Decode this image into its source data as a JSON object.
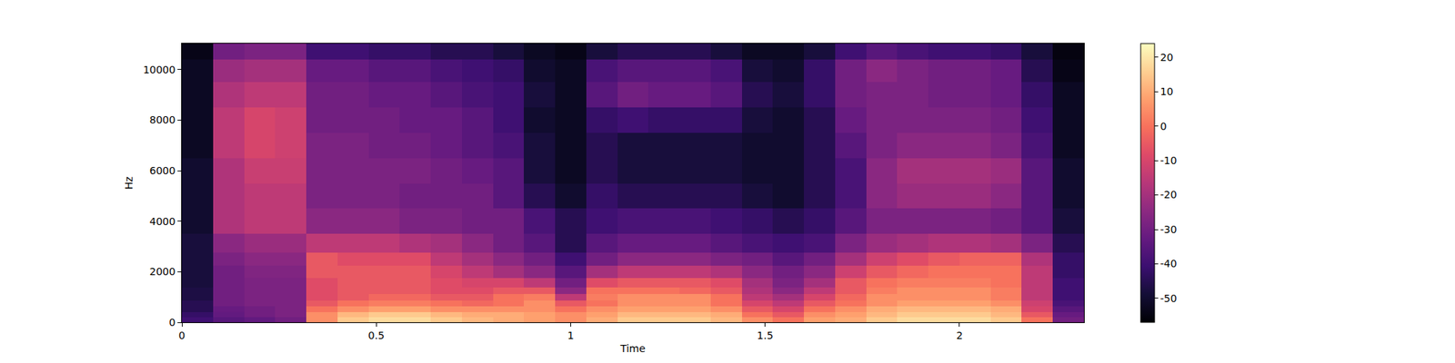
{
  "chart_data": {
    "type": "heatmap",
    "x_label": "Time",
    "y_label": "Hz",
    "color": "magma",
    "x": [
      0.04,
      0.12,
      0.2,
      0.28,
      0.36,
      0.44,
      0.52,
      0.6,
      0.68,
      0.76,
      0.84,
      0.92,
      1.0,
      1.08,
      1.16,
      1.24,
      1.32,
      1.4,
      1.48,
      1.56,
      1.64,
      1.72,
      1.8,
      1.88,
      1.96,
      2.04,
      2.12,
      2.2,
      2.28
    ],
    "y": [
      100,
      300,
      500,
      750,
      1000,
      1250,
      1500,
      2000,
      2500,
      3000,
      4000,
      5000,
      6000,
      7000,
      8000,
      9000,
      10000,
      10800
    ],
    "z": [
      [
        -40,
        -35,
        -33,
        -30,
        5,
        15,
        18,
        18,
        15,
        12,
        10,
        8,
        5,
        10,
        15,
        15,
        15,
        12,
        5,
        0,
        8,
        10,
        15,
        18,
        18,
        18,
        15,
        0,
        -30
      ],
      [
        -42,
        -33,
        -30,
        -28,
        5,
        12,
        15,
        15,
        12,
        10,
        10,
        8,
        5,
        8,
        12,
        12,
        12,
        10,
        0,
        -5,
        5,
        8,
        12,
        15,
        15,
        15,
        12,
        -5,
        -32
      ],
      [
        -45,
        -32,
        -30,
        -28,
        0,
        5,
        8,
        8,
        5,
        5,
        5,
        5,
        0,
        5,
        8,
        8,
        8,
        5,
        -5,
        -10,
        0,
        5,
        10,
        12,
        12,
        12,
        10,
        -10,
        -35
      ],
      [
        -45,
        -30,
        -28,
        -28,
        -5,
        0,
        2,
        2,
        0,
        -2,
        0,
        5,
        -5,
        0,
        5,
        5,
        5,
        0,
        -10,
        -15,
        -5,
        0,
        5,
        8,
        8,
        8,
        5,
        -12,
        -38
      ],
      [
        -47,
        -30,
        -28,
        -28,
        -8,
        -5,
        -2,
        -2,
        -5,
        -5,
        0,
        2,
        -15,
        2,
        5,
        5,
        5,
        0,
        -15,
        -20,
        -10,
        -2,
        5,
        5,
        5,
        5,
        2,
        -15,
        -40
      ],
      [
        -47,
        -30,
        -28,
        -28,
        -8,
        -5,
        -5,
        -5,
        -8,
        -8,
        -5,
        -5,
        -25,
        0,
        0,
        0,
        -2,
        -5,
        -18,
        -25,
        -15,
        -5,
        2,
        5,
        5,
        5,
        2,
        -15,
        -40
      ],
      [
        -48,
        -30,
        -28,
        -28,
        -8,
        -5,
        -5,
        -5,
        -8,
        -10,
        -10,
        -15,
        -30,
        -8,
        -5,
        -5,
        -5,
        -8,
        -20,
        -28,
        -20,
        -5,
        0,
        2,
        2,
        2,
        0,
        -15,
        -40
      ],
      [
        -48,
        -30,
        -27,
        -27,
        -5,
        -5,
        -5,
        -5,
        -10,
        -15,
        -20,
        -25,
        -35,
        -20,
        -15,
        -15,
        -15,
        -18,
        -25,
        -30,
        -25,
        -12,
        -5,
        -2,
        0,
        0,
        0,
        -15,
        -42
      ],
      [
        -48,
        -28,
        -25,
        -25,
        -5,
        -8,
        -8,
        -8,
        -15,
        -20,
        -25,
        -30,
        -40,
        -30,
        -25,
        -25,
        -25,
        -28,
        -30,
        -35,
        -30,
        -20,
        -12,
        -8,
        -5,
        -3,
        -3,
        -18,
        -42
      ],
      [
        -48,
        -25,
        -22,
        -22,
        -15,
        -15,
        -15,
        -18,
        -20,
        -25,
        -30,
        -35,
        -45,
        -35,
        -32,
        -32,
        -32,
        -35,
        -38,
        -40,
        -38,
        -28,
        -22,
        -20,
        -18,
        -18,
        -20,
        -28,
        -45
      ],
      [
        -50,
        -18,
        -15,
        -15,
        -25,
        -25,
        -25,
        -28,
        -28,
        -30,
        -30,
        -38,
        -45,
        -40,
        -38,
        -38,
        -38,
        -40,
        -42,
        -45,
        -42,
        -35,
        -28,
        -28,
        -28,
        -28,
        -30,
        -35,
        -48
      ],
      [
        -50,
        -18,
        -15,
        -15,
        -28,
        -28,
        -28,
        -30,
        -30,
        -30,
        -35,
        -45,
        -50,
        -42,
        -45,
        -45,
        -45,
        -45,
        -48,
        -50,
        -45,
        -38,
        -25,
        -22,
        -22,
        -22,
        -25,
        -35,
        -50
      ],
      [
        -50,
        -18,
        -13,
        -13,
        -28,
        -28,
        -28,
        -28,
        -30,
        -32,
        -35,
        -48,
        -52,
        -45,
        -48,
        -48,
        -48,
        -48,
        -50,
        -50,
        -45,
        -38,
        -25,
        -20,
        -20,
        -20,
        -22,
        -35,
        -50
      ],
      [
        -52,
        -15,
        -10,
        -12,
        -28,
        -28,
        -30,
        -30,
        -32,
        -35,
        -38,
        -48,
        -52,
        -45,
        -48,
        -48,
        -48,
        -48,
        -50,
        -50,
        -45,
        -35,
        -28,
        -25,
        -25,
        -25,
        -28,
        -38,
        -52
      ],
      [
        -52,
        -15,
        -10,
        -12,
        -30,
        -30,
        -30,
        -32,
        -32,
        -35,
        -40,
        -50,
        -52,
        -42,
        -40,
        -42,
        -42,
        -42,
        -48,
        -50,
        -45,
        -32,
        -28,
        -28,
        -28,
        -28,
        -30,
        -40,
        -52
      ],
      [
        -52,
        -18,
        -15,
        -15,
        -30,
        -30,
        -32,
        -32,
        -35,
        -38,
        -40,
        -48,
        -52,
        -35,
        -30,
        -32,
        -32,
        -35,
        -45,
        -48,
        -42,
        -30,
        -28,
        -28,
        -30,
        -30,
        -32,
        -42,
        -52
      ],
      [
        -52,
        -22,
        -20,
        -20,
        -32,
        -32,
        -35,
        -35,
        -38,
        -40,
        -42,
        -50,
        -52,
        -38,
        -35,
        -35,
        -35,
        -38,
        -48,
        -50,
        -42,
        -30,
        -25,
        -28,
        -30,
        -30,
        -32,
        -45,
        -54
      ],
      [
        -54,
        -30,
        -28,
        -28,
        -40,
        -40,
        -42,
        -42,
        -45,
        -45,
        -48,
        -52,
        -54,
        -48,
        -45,
        -45,
        -45,
        -48,
        -52,
        -52,
        -48,
        -40,
        -35,
        -38,
        -40,
        -40,
        -42,
        -48,
        -55
      ]
    ],
    "xlim": [
      0,
      2.32
    ],
    "ylim": [
      0,
      11025
    ],
    "xticks": [
      0,
      0.5,
      1,
      1.5,
      2
    ],
    "yticks": [
      0,
      2000,
      4000,
      6000,
      8000,
      10000
    ],
    "zlim": [
      -57,
      24
    ],
    "zticks": [
      -50,
      -40,
      -30,
      -20,
      -10,
      0,
      10,
      20
    ]
  }
}
